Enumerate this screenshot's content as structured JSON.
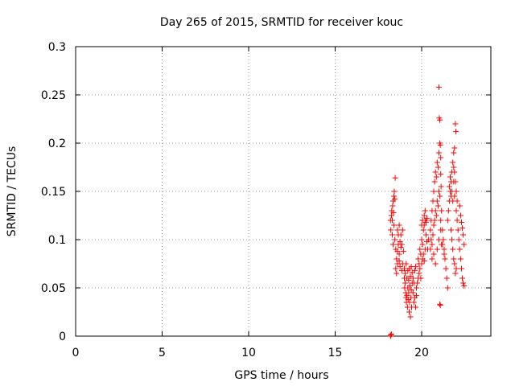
{
  "chart_data": {
    "type": "scatter",
    "title": "Day 265 of 2015, SRMTID for receiver kouc",
    "xlabel": "GPS time / hours",
    "ylabel": "SRMTID / TECUs",
    "xlim": [
      0,
      24
    ],
    "ylim": [
      0,
      0.3
    ],
    "xticks": [
      0,
      5,
      10,
      15,
      20
    ],
    "xtick_labels": [
      "0",
      "5",
      "10",
      "15",
      "20"
    ],
    "yticks": [
      0,
      0.05,
      0.1,
      0.15,
      0.2,
      0.25,
      0.3
    ],
    "ytick_labels": [
      "0",
      "0.05",
      "0.1",
      "0.15",
      "0.2",
      "0.25",
      "0.3"
    ],
    "grid": true,
    "marker": "+",
    "color": "#ff0000",
    "series": [
      {
        "name": "SRMTID",
        "points": [
          [
            18.2,
            0.001
          ],
          [
            18.22,
            0.0
          ],
          [
            18.25,
            0.002
          ],
          [
            18.2,
            0.12
          ],
          [
            18.22,
            0.11
          ],
          [
            18.25,
            0.125
          ],
          [
            18.27,
            0.13
          ],
          [
            18.3,
            0.12
          ],
          [
            18.32,
            0.135
          ],
          [
            18.35,
            0.14
          ],
          [
            18.37,
            0.128
          ],
          [
            18.4,
            0.145
          ],
          [
            18.42,
            0.15
          ],
          [
            18.45,
            0.142
          ],
          [
            18.47,
            0.164
          ],
          [
            18.3,
            0.105
          ],
          [
            18.35,
            0.095
          ],
          [
            18.4,
            0.115
          ],
          [
            18.45,
            0.1
          ],
          [
            18.5,
            0.09
          ],
          [
            18.55,
            0.08
          ],
          [
            18.6,
            0.075
          ],
          [
            18.65,
            0.095
          ],
          [
            18.7,
            0.085
          ],
          [
            18.5,
            0.07
          ],
          [
            18.55,
            0.065
          ],
          [
            18.6,
            0.088
          ],
          [
            18.7,
            0.078
          ],
          [
            18.75,
            0.072
          ],
          [
            18.8,
            0.092
          ],
          [
            18.85,
            0.068
          ],
          [
            18.9,
            0.075
          ],
          [
            18.95,
            0.088
          ],
          [
            18.6,
            0.11
          ],
          [
            18.65,
            0.105
          ],
          [
            18.7,
            0.115
          ],
          [
            18.75,
            0.098
          ],
          [
            18.8,
            0.105
          ],
          [
            18.85,
            0.095
          ],
          [
            18.9,
            0.11
          ],
          [
            19.0,
            0.06
          ],
          [
            19.02,
            0.05
          ],
          [
            19.05,
            0.055
          ],
          [
            19.08,
            0.045
          ],
          [
            19.1,
            0.04
          ],
          [
            19.12,
            0.035
          ],
          [
            19.15,
            0.042
          ],
          [
            19.18,
            0.03
          ],
          [
            19.2,
            0.05
          ],
          [
            19.22,
            0.038
          ],
          [
            19.25,
            0.045
          ],
          [
            19.28,
            0.025
          ],
          [
            19.3,
            0.035
          ],
          [
            19.32,
            0.052
          ],
          [
            19.35,
            0.02
          ],
          [
            19.38,
            0.04
          ],
          [
            19.4,
            0.048
          ],
          [
            19.42,
            0.03
          ],
          [
            19.45,
            0.055
          ],
          [
            19.0,
            0.07
          ],
          [
            19.05,
            0.065
          ],
          [
            19.1,
            0.075
          ],
          [
            19.15,
            0.06
          ],
          [
            19.2,
            0.068
          ],
          [
            19.25,
            0.058
          ],
          [
            19.3,
            0.07
          ],
          [
            19.35,
            0.062
          ],
          [
            19.4,
            0.072
          ],
          [
            19.45,
            0.066
          ],
          [
            19.5,
            0.06
          ],
          [
            19.55,
            0.055
          ],
          [
            19.6,
            0.068
          ],
          [
            19.65,
            0.072
          ],
          [
            19.7,
            0.05
          ],
          [
            19.5,
            0.045
          ],
          [
            19.55,
            0.035
          ],
          [
            19.6,
            0.04
          ],
          [
            19.65,
            0.03
          ],
          [
            19.7,
            0.042
          ],
          [
            19.75,
            0.055
          ],
          [
            19.8,
            0.06
          ],
          [
            19.8,
            0.08
          ],
          [
            19.85,
            0.075
          ],
          [
            19.9,
            0.09
          ],
          [
            19.95,
            0.085
          ],
          [
            20.0,
            0.1
          ],
          [
            20.05,
            0.095
          ],
          [
            20.1,
            0.11
          ],
          [
            20.15,
            0.115
          ],
          [
            20.2,
            0.12
          ],
          [
            20.25,
            0.105
          ],
          [
            20.3,
            0.098
          ],
          [
            20.35,
            0.09
          ],
          [
            20.4,
            0.1
          ],
          [
            19.85,
            0.065
          ],
          [
            19.9,
            0.07
          ],
          [
            19.95,
            0.06
          ],
          [
            20.0,
            0.075
          ],
          [
            20.05,
            0.08
          ],
          [
            20.1,
            0.085
          ],
          [
            20.15,
            0.078
          ],
          [
            20.2,
            0.09
          ],
          [
            20.15,
            0.125
          ],
          [
            20.2,
            0.13
          ],
          [
            20.25,
            0.118
          ],
          [
            20.3,
            0.122
          ],
          [
            20.0,
            0.115
          ],
          [
            20.05,
            0.12
          ],
          [
            20.5,
            0.11
          ],
          [
            20.55,
            0.12
          ],
          [
            20.6,
            0.13
          ],
          [
            20.65,
            0.14
          ],
          [
            20.7,
            0.15
          ],
          [
            20.75,
            0.16
          ],
          [
            20.8,
            0.17
          ],
          [
            20.85,
            0.165
          ],
          [
            20.9,
            0.18
          ],
          [
            20.95,
            0.175
          ],
          [
            21.0,
            0.19
          ],
          [
            21.05,
            0.2
          ],
          [
            21.1,
            0.185
          ],
          [
            20.5,
            0.09
          ],
          [
            20.55,
            0.1
          ],
          [
            20.6,
            0.095
          ],
          [
            20.65,
            0.105
          ],
          [
            20.7,
            0.115
          ],
          [
            20.75,
            0.12
          ],
          [
            20.8,
            0.13
          ],
          [
            20.85,
            0.125
          ],
          [
            20.9,
            0.14
          ],
          [
            20.95,
            0.135
          ],
          [
            21.0,
            0.15
          ],
          [
            21.05,
            0.145
          ],
          [
            20.6,
            0.08
          ],
          [
            20.7,
            0.085
          ],
          [
            20.8,
            0.075
          ],
          [
            20.9,
            0.09
          ],
          [
            21.0,
            0.1
          ],
          [
            21.1,
            0.11
          ],
          [
            21.15,
            0.095
          ],
          [
            21.0,
            0.258
          ],
          [
            21.02,
            0.226
          ],
          [
            21.05,
            0.224
          ],
          [
            21.08,
            0.198
          ],
          [
            21.1,
            0.168
          ],
          [
            21.12,
            0.155
          ],
          [
            21.1,
            0.12
          ],
          [
            21.15,
            0.13
          ],
          [
            21.2,
            0.11
          ],
          [
            21.25,
            0.1
          ],
          [
            21.3,
            0.09
          ],
          [
            21.35,
            0.08
          ],
          [
            21.4,
            0.07
          ],
          [
            21.45,
            0.06
          ],
          [
            21.5,
            0.05
          ],
          [
            21.2,
            0.095
          ],
          [
            21.3,
            0.085
          ],
          [
            21.05,
            0.033
          ],
          [
            21.08,
            0.032
          ],
          [
            21.5,
            0.12
          ],
          [
            21.55,
            0.13
          ],
          [
            21.6,
            0.14
          ],
          [
            21.65,
            0.15
          ],
          [
            21.7,
            0.16
          ],
          [
            21.75,
            0.17
          ],
          [
            21.8,
            0.18
          ],
          [
            21.85,
            0.19
          ],
          [
            21.9,
            0.17
          ],
          [
            21.95,
            0.16
          ],
          [
            22.0,
            0.15
          ],
          [
            22.05,
            0.14
          ],
          [
            21.6,
            0.155
          ],
          [
            21.65,
            0.165
          ],
          [
            21.7,
            0.145
          ],
          [
            21.75,
            0.15
          ],
          [
            21.8,
            0.14
          ],
          [
            21.85,
            0.16
          ],
          [
            21.9,
            0.145
          ],
          [
            21.95,
            0.22
          ],
          [
            21.98,
            0.212
          ],
          [
            21.9,
            0.195
          ],
          [
            21.85,
            0.175
          ],
          [
            21.7,
            0.11
          ],
          [
            21.75,
            0.1
          ],
          [
            21.8,
            0.09
          ],
          [
            21.85,
            0.08
          ],
          [
            21.9,
            0.075
          ],
          [
            21.95,
            0.065
          ],
          [
            22.0,
            0.07
          ],
          [
            22.0,
            0.13
          ],
          [
            22.05,
            0.12
          ],
          [
            22.1,
            0.11
          ],
          [
            22.15,
            0.1
          ],
          [
            22.2,
            0.09
          ],
          [
            22.25,
            0.08
          ],
          [
            22.3,
            0.07
          ],
          [
            22.35,
            0.06
          ],
          [
            22.4,
            0.055
          ],
          [
            22.45,
            0.052
          ],
          [
            22.2,
            0.135
          ],
          [
            22.25,
            0.125
          ],
          [
            22.3,
            0.118
          ],
          [
            22.35,
            0.112
          ],
          [
            22.4,
            0.105
          ],
          [
            22.45,
            0.095
          ]
        ]
      }
    ]
  }
}
